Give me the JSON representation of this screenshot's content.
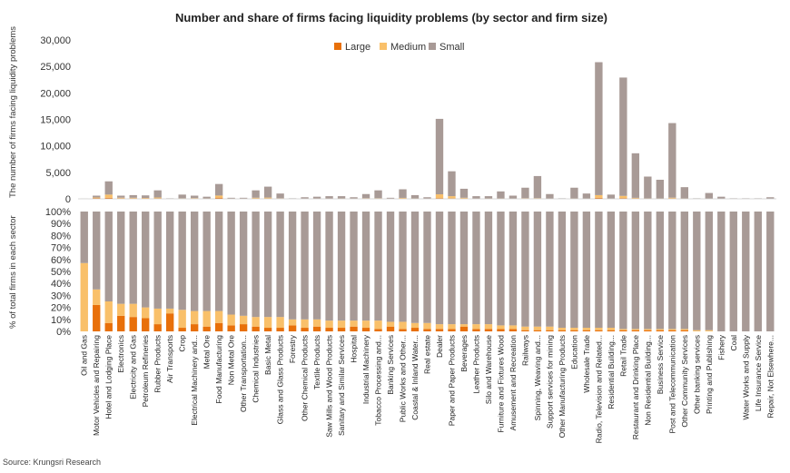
{
  "chart_data": {
    "type": "bar",
    "title": "Number and share of firms facing liquidity problems (by sector and firm size)",
    "source": "Source: Krungsri Research",
    "legend": [
      "Large",
      "Medium",
      "Small"
    ],
    "legend_position": "top-center",
    "colors": {
      "Large": "#E8700A",
      "Medium": "#F9C06A",
      "Small": "#A89A96"
    },
    "categories": [
      "Oil and Gas",
      "Motor Vehicles and Repairing",
      "Hotel and Lodging Place",
      "Electronics",
      "Electricity and Gas",
      "Petroleum Refineries",
      "Rubber Products",
      "Air Transports",
      "Crop",
      "Electrical Machinery and...",
      "Metal Ore",
      "Food Manufacturing",
      "Non Metal Ore",
      "Other Transportation...",
      "Chemical Industries",
      "Basic Metal",
      "Glass and Glass Products",
      "Forestry",
      "Other Chemical Products",
      "Textile Products",
      "Saw Mills and Wood Products",
      "Sanitary and Similar Services",
      "Hospital",
      "Industrial Machinery",
      "Tobacco Processing and...",
      "Banking Services",
      "Public Works and Other...",
      "Coastal & Inland Water...",
      "Real estate",
      "Dealer",
      "Paper and Paper Products",
      "Beverages",
      "Leather Products",
      "Silo and Warehouse",
      "Furniture and Fixtures Wood",
      "Amusement and Recreation",
      "Railways",
      "Spinning, Weaving and...",
      "Support services for mining",
      "Other Manufacturing Products",
      "Education",
      "Wholesale Trade",
      "Radio, Television and Related...",
      "Residential Building...",
      "Retail Trade",
      "Restaurant and Drinking Place",
      "Non Residential Building...",
      "Business Service",
      "Post and Telecommunication",
      "Other Community Services",
      "Other banking services",
      "Printing and Publishing",
      "Fishery",
      "Coal",
      "Water Works and Supply",
      "Life Insurance Service",
      "Repair, Not Elsewhere..."
    ],
    "top": {
      "ylabel": "The number of firms facing liquidity problems",
      "ylim": [
        0,
        30000
      ],
      "yticks": [
        "0",
        "5,000",
        "10,000",
        "15,000",
        "20,000",
        "25,000",
        "30,000"
      ],
      "totals": [
        20,
        600,
        3300,
        600,
        700,
        650,
        1600,
        100,
        800,
        600,
        400,
        2800,
        200,
        200,
        1600,
        2300,
        1000,
        100,
        300,
        400,
        500,
        500,
        300,
        900,
        1600,
        200,
        1800,
        700,
        300,
        15100,
        5200,
        1900,
        500,
        500,
        1400,
        600,
        2100,
        4300,
        900,
        100,
        2100,
        1000,
        25800,
        800,
        22900,
        8600,
        4200,
        3600,
        14300,
        2200,
        100,
        1100,
        400,
        100,
        100,
        100,
        300
      ],
      "large": [
        5,
        150,
        200,
        120,
        110,
        90,
        100,
        15,
        30,
        60,
        30,
        220,
        20,
        20,
        60,
        40,
        25,
        3,
        15,
        20,
        20,
        25,
        20,
        40,
        20,
        15,
        60,
        25,
        10,
        150,
        100,
        60,
        15,
        20,
        20,
        15,
        40,
        30,
        15,
        3,
        20,
        15,
        200,
        15,
        150,
        70,
        30,
        25,
        70,
        20,
        2,
        10,
        5,
        1,
        1,
        1,
        3
      ],
      "medium": [
        5,
        100,
        600,
        100,
        90,
        80,
        150,
        10,
        70,
        80,
        40,
        400,
        30,
        30,
        150,
        200,
        80,
        5,
        20,
        30,
        30,
        40,
        30,
        80,
        100,
        20,
        120,
        50,
        20,
        700,
        400,
        140,
        35,
        40,
        60,
        30,
        80,
        100,
        30,
        5,
        50,
        30,
        500,
        25,
        400,
        120,
        60,
        50,
        150,
        40,
        3,
        20,
        10,
        2,
        2,
        2,
        5
      ]
    },
    "bottom": {
      "ylabel": "% of total firms in each sector",
      "ylim": [
        0,
        100
      ],
      "yticks": [
        "0%",
        "10%",
        "20%",
        "30%",
        "40%",
        "50%",
        "60%",
        "70%",
        "80%",
        "90%",
        "100%"
      ],
      "large_pct": [
        0,
        22,
        7,
        13,
        12,
        11,
        6,
        15,
        3,
        6,
        4,
        7,
        5,
        6,
        4,
        3,
        3,
        5,
        3,
        4,
        3,
        3,
        4,
        3,
        2,
        4,
        2,
        3,
        2,
        2,
        2,
        4,
        2,
        2,
        2,
        2,
        1,
        1,
        1,
        1,
        1,
        1,
        1,
        1,
        1,
        1,
        1,
        1,
        1,
        1,
        0,
        0,
        0,
        0,
        0,
        0,
        0
      ],
      "medium_pct": [
        57,
        13,
        18,
        10,
        11,
        9,
        13,
        4,
        15,
        11,
        13,
        10,
        9,
        7,
        8,
        9,
        9,
        5,
        7,
        6,
        6,
        6,
        5,
        6,
        7,
        4,
        6,
        4,
        5,
        4,
        4,
        2,
        4,
        4,
        3,
        3,
        3,
        3,
        3,
        2,
        2,
        2,
        2,
        2,
        1,
        1,
        1,
        1,
        1,
        1,
        1,
        1,
        0,
        0,
        0,
        0,
        0
      ]
    }
  }
}
